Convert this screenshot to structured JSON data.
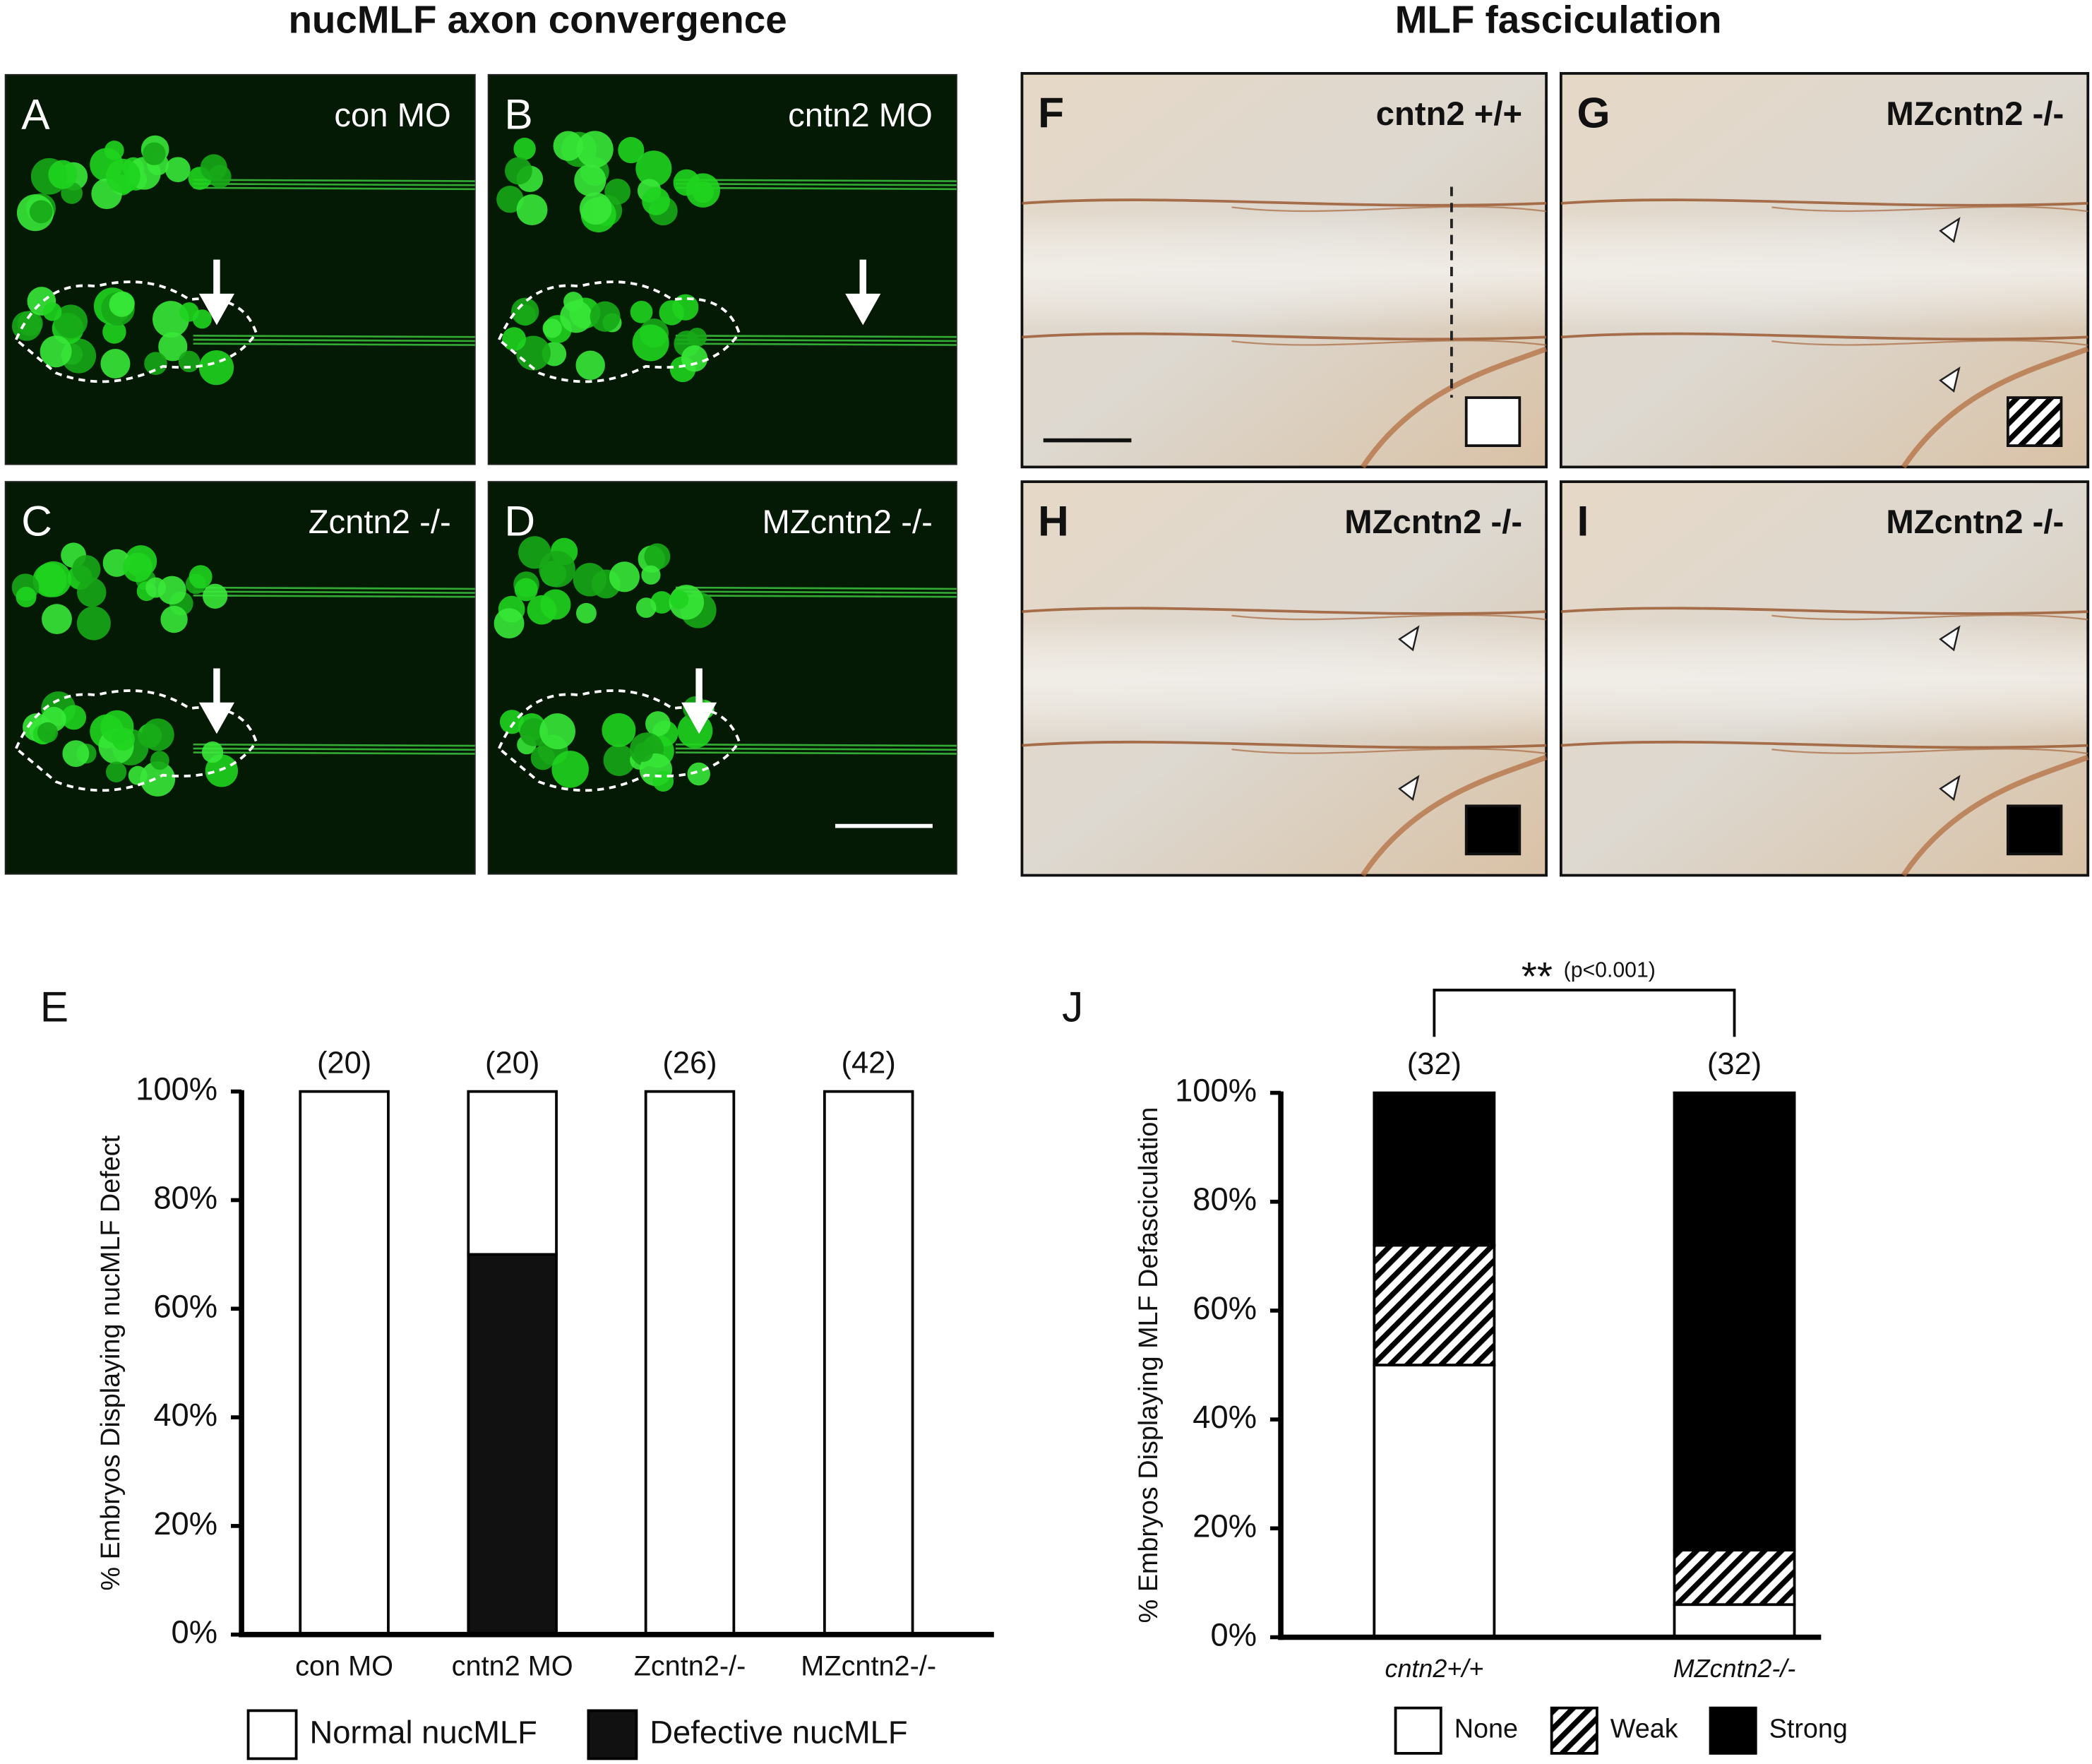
{
  "figure": {
    "headings": [
      "nucMLF axon convergence",
      "MLF fasciculation"
    ],
    "panels": [
      {
        "letter": "A",
        "label": "con MO"
      },
      {
        "letter": "B",
        "label": "cntn2 MO"
      },
      {
        "letter": "C",
        "label": "Zcntn2 -/-"
      },
      {
        "letter": "D",
        "label": "MZcntn2 -/-"
      },
      {
        "letter": "F",
        "label": "cntn2 +/+"
      },
      {
        "letter": "G",
        "label": "MZcntn2 -/-"
      },
      {
        "letter": "H",
        "label": "MZcntn2 -/-"
      },
      {
        "letter": "I",
        "label": "MZcntn2 -/-"
      }
    ]
  },
  "chart_data": [
    {
      "type": "bar",
      "panel": "E",
      "stacked": true,
      "stack_order": "reverse",
      "y_label": "% Embryos Displaying nucMLF Defect",
      "categories": [
        "con MO",
        "cntn2 MO",
        "Zcntn2-/-",
        "MZcntn2-/-"
      ],
      "n_labels": [
        "(20)",
        "(20)",
        "(26)",
        "(42)"
      ],
      "series": [
        {
          "name": "Normal nucMLF",
          "color": "#ffffff",
          "values": [
            100,
            30,
            100,
            100
          ]
        },
        {
          "name": "Defective nucMLF",
          "color": "#111111",
          "values": [
            0,
            70,
            0,
            0
          ]
        }
      ],
      "ylim": [
        0,
        100
      ],
      "yticks": [
        {
          "value": 0,
          "label": "0%"
        },
        {
          "value": 20,
          "label": "20%"
        },
        {
          "value": 40,
          "label": "40%"
        },
        {
          "value": 60,
          "label": "60%"
        },
        {
          "value": 80,
          "label": "80%"
        },
        {
          "value": 100,
          "label": "100%"
        }
      ]
    },
    {
      "type": "bar",
      "panel": "J",
      "stacked": true,
      "stack_order": "normal",
      "y_label": "% Embryos Displaying MLF Defasciculation",
      "categories": [
        "cntn2+/+",
        "MZcntn2-/-"
      ],
      "n_labels": [
        "(32)",
        "(32)"
      ],
      "significance": {
        "stars": "**",
        "p": "(p<0.001)"
      },
      "series": [
        {
          "name": "None",
          "color": "#ffffff",
          "values": [
            50,
            6
          ]
        },
        {
          "name": "Weak",
          "color": "#000000",
          "pattern": "diagonal",
          "values": [
            22,
            10
          ]
        },
        {
          "name": "Strong",
          "color": "#000000",
          "values": [
            28,
            84
          ]
        }
      ],
      "ylim": [
        0,
        100
      ],
      "yticks": [
        {
          "value": 0,
          "label": "0%"
        },
        {
          "value": 20,
          "label": "20%"
        },
        {
          "value": 40,
          "label": "40%"
        },
        {
          "value": 60,
          "label": "60%"
        },
        {
          "value": 80,
          "label": "80%"
        },
        {
          "value": 100,
          "label": "100%"
        }
      ]
    }
  ]
}
